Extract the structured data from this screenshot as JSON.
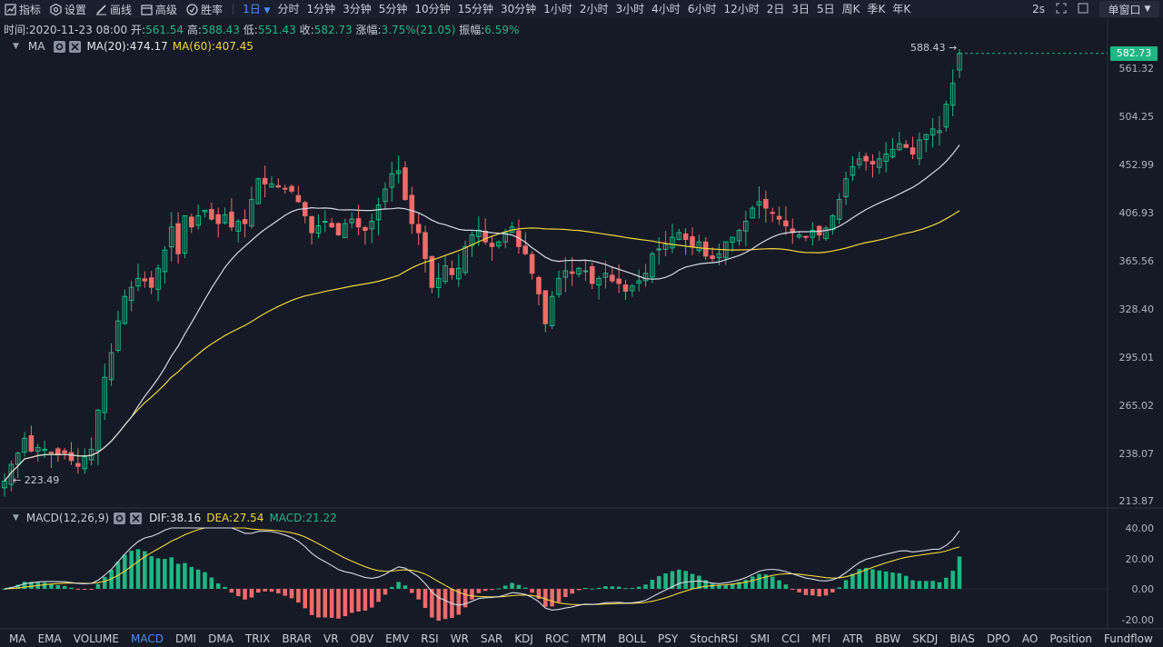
{
  "toolbar": {
    "tools": [
      {
        "label": "指标",
        "icon": "chart-icon"
      },
      {
        "label": "设置",
        "icon": "settings-icon"
      },
      {
        "label": "画线",
        "icon": "pencil-icon"
      },
      {
        "label": "高级",
        "icon": "calendar-icon"
      },
      {
        "label": "胜率",
        "icon": "target-icon"
      }
    ],
    "active_period": "1日",
    "periods": [
      "分时",
      "1分钟",
      "3分钟",
      "5分钟",
      "10分钟",
      "15分钟",
      "30分钟",
      "1小时",
      "2小时",
      "3小时",
      "4小时",
      "6小时",
      "12小时",
      "2日",
      "3日",
      "5日",
      "周K",
      "季K",
      "年K"
    ],
    "refresh": "2s",
    "window_mode": "单窗口"
  },
  "info": {
    "time_label": "时间:",
    "time": "2020-11-23 08:00",
    "open_label": "开:",
    "open": "561.54",
    "high_label": "高:",
    "high": "588.43",
    "low_label": "低:",
    "low": "551.43",
    "close_label": "收:",
    "close": "582.73",
    "change_label": "涨幅:",
    "change": "3.75%(21.05)",
    "amplitude_label": "振幅:",
    "amplitude": "6.59%"
  },
  "main_legend": {
    "name": "MA",
    "ma20": "MA(20):474.17",
    "ma60": "MA(60):407.45"
  },
  "macd_legend": {
    "name": "MACD(12,26,9)",
    "dif": "DIF:38.16",
    "dea": "DEA:27.54",
    "macd": "MACD:21.22"
  },
  "price_axis": [
    "561.32",
    "504.25",
    "452.99",
    "406.93",
    "365.56",
    "328.40",
    "295.01",
    "265.02",
    "238.07",
    "213.87"
  ],
  "macd_axis": [
    "40.00",
    "20.00",
    "0.00",
    "-20.00"
  ],
  "last_price": "582.73",
  "high_marker": "588.43 →",
  "low_marker": "← 223.49",
  "indicator_tabs": [
    "MA",
    "EMA",
    "VOLUME",
    "MACD",
    "DMI",
    "DMA",
    "TRIX",
    "BRAR",
    "VR",
    "OBV",
    "EMV",
    "RSI",
    "WR",
    "SAR",
    "KDJ",
    "ROC",
    "MTM",
    "BOLL",
    "PSY",
    "StochRSI",
    "SMI",
    "CCI",
    "MFI",
    "ATR",
    "BBW",
    "SKDJ",
    "BIAS",
    "DPO",
    "AO",
    "Position",
    "Fundflow"
  ],
  "active_indicator": "MACD",
  "colors": {
    "up": "#1eb682",
    "down": "#f06a6a",
    "ma20": "#d8dbe4",
    "ma60": "#f2d63c",
    "accent": "#4a90ff",
    "background": "#151a26"
  },
  "chart_data": [
    {
      "type": "candlestick",
      "title": "",
      "date": "2020-11-23 08:00",
      "ylim": [
        213.87,
        588.43
      ],
      "scale": "log",
      "close_series": [
        223.5,
        232,
        238,
        246,
        239,
        241,
        240,
        238,
        237,
        238,
        234,
        231,
        236,
        240,
        262,
        282,
        298,
        320,
        338,
        345,
        352,
        350,
        345,
        360,
        375,
        395,
        372,
        405,
        395,
        405,
        410,
        402,
        398,
        406,
        395,
        400,
        398,
        420,
        440,
        435,
        435,
        432,
        430,
        428,
        418,
        405,
        390,
        396,
        400,
        395,
        388,
        398,
        402,
        395,
        392,
        400,
        415,
        430,
        445,
        448,
        420,
        398,
        390,
        368,
        345,
        352,
        362,
        355,
        360,
        378,
        388,
        392,
        382,
        378,
        382,
        390,
        395,
        378,
        372,
        356,
        340,
        318,
        338,
        352,
        358,
        356,
        360,
        358,
        348,
        352,
        356,
        350,
        348,
        342,
        346,
        350,
        356,
        372,
        376,
        380,
        386,
        390,
        384,
        378,
        382,
        370,
        368,
        372,
        382,
        386,
        392,
        400,
        412,
        418,
        412,
        408,
        402,
        396,
        390,
        388,
        386,
        392,
        388,
        394,
        405,
        420,
        440,
        452,
        460,
        458,
        455,
        460,
        465,
        470,
        476,
        472,
        465,
        480,
        486,
        492,
        490,
        520,
        545,
        582.73
      ],
      "ma20_end": 474.17,
      "ma60_end": 407.45
    },
    {
      "type": "bar",
      "title": "",
      "ylim": [
        -25,
        40
      ],
      "dif_end": 38.16,
      "dea_end": 27.54,
      "macd_end": 21.22
    }
  ]
}
